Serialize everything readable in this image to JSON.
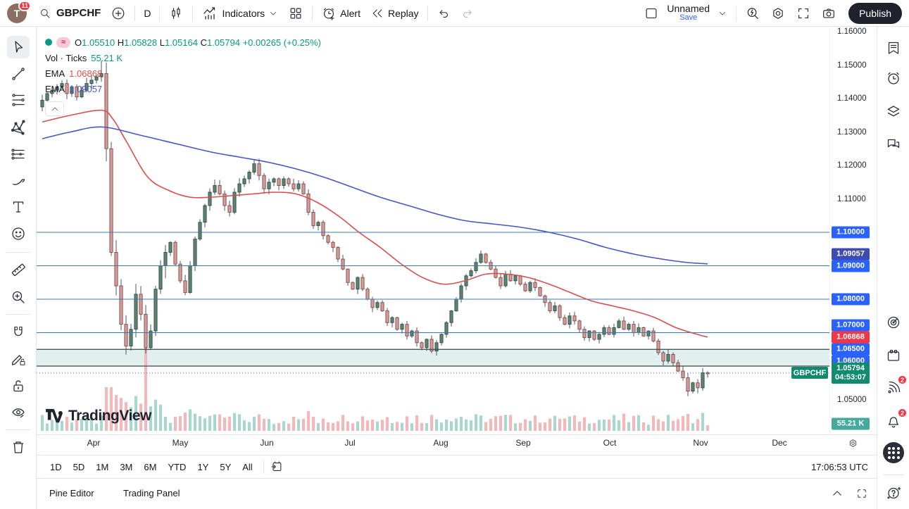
{
  "header": {
    "avatar_initial": "T",
    "avatar_badge": "11",
    "symbol": "GBPCHF",
    "interval": "D",
    "indicators_label": "Indicators",
    "alert_label": "Alert",
    "replay_label": "Replay",
    "layout_name": "Unnamed",
    "save_label": "Save",
    "publish_label": "Publish"
  },
  "legend": {
    "approx_symbol": "≈",
    "ohlc_items": [
      {
        "k": "O",
        "v": "1.05510"
      },
      {
        "k": "H",
        "v": "1.05828"
      },
      {
        "k": "L",
        "v": "1.05164"
      },
      {
        "k": "C",
        "v": "1.05794"
      }
    ],
    "change_text": "+0.00265 (+0.25%)",
    "vol_label": "Vol · Ticks",
    "vol_value": "55.21 K",
    "ema_label": "EMA",
    "ema_fast_value": "1.06868",
    "ema_slow_value": "1.09057"
  },
  "price_scale": {
    "ticks": [
      {
        "label": "1.16000",
        "price": 1.16
      },
      {
        "label": "1.15000",
        "price": 1.15
      },
      {
        "label": "1.14000",
        "price": 1.14
      },
      {
        "label": "1.13000",
        "price": 1.13
      },
      {
        "label": "1.12000",
        "price": 1.12
      },
      {
        "label": "1.11000",
        "price": 1.11
      },
      {
        "label": "1.05000",
        "price": 1.05
      }
    ],
    "badges": [
      {
        "label": "1.10000",
        "color": "#2962ff"
      },
      {
        "label": "1.09057",
        "color": "#3f4bb5"
      },
      {
        "label": "1.09000",
        "color": "#2962ff"
      },
      {
        "label": "1.08000",
        "color": "#2962ff"
      },
      {
        "label": "1.07000",
        "color": "#2962ff"
      },
      {
        "label": "1.06868",
        "color": "#f23645"
      },
      {
        "label": "1.06500",
        "color": "#2962ff"
      },
      {
        "label": "1.06000",
        "color": "#2962ff"
      },
      {
        "label": "1.05794",
        "sub": "04:53:07",
        "color": "#118a6e"
      },
      {
        "label": "55.21 K",
        "color": "#45a99e"
      }
    ],
    "symbol_axis_label": "GBPCHF"
  },
  "time_scale": {
    "months": [
      "Apr",
      "May",
      "Jun",
      "Jul",
      "Aug",
      "Sep",
      "Oct",
      "Nov",
      "Dec"
    ],
    "clock": "17:06:53 UTC"
  },
  "ranges": [
    "1D",
    "5D",
    "1M",
    "3M",
    "6M",
    "YTD",
    "1Y",
    "5Y",
    "All"
  ],
  "footer": {
    "tabs": [
      "Pine Editor",
      "Trading Panel"
    ]
  },
  "watermark_text": "TradingView",
  "right_sidebar": {
    "streams_badge": "2",
    "notifications_badge": "2"
  },
  "chart_data": {
    "type": "candlestick",
    "symbol": "GBPCHF",
    "interval": "1D",
    "last_bar": {
      "o": 1.0551,
      "h": 1.05828,
      "l": 1.05164,
      "c": 1.05794,
      "change": 0.00265,
      "change_pct": 0.25
    },
    "volume_last": "55.21 K",
    "ylim": [
      1.0475,
      1.161
    ],
    "price_levels_blue": [
      1.1,
      1.09,
      1.08,
      1.07
    ],
    "band": {
      "top": 1.065,
      "bottom": 1.06
    },
    "last_price": 1.05794,
    "countdown": "04:53:07",
    "ema_fast": {
      "color": "#d94f4f",
      "last": 1.06868,
      "points": [
        [
          60,
          1.133
        ],
        [
          100,
          1.135
        ],
        [
          144,
          1.1365
        ],
        [
          160,
          1.134
        ],
        [
          180,
          1.127
        ],
        [
          210,
          1.1165
        ],
        [
          240,
          1.1125
        ],
        [
          270,
          1.1105
        ],
        [
          300,
          1.1105
        ],
        [
          330,
          1.111
        ],
        [
          360,
          1.1115
        ],
        [
          390,
          1.112
        ],
        [
          420,
          1.1115
        ],
        [
          450,
          1.109
        ],
        [
          480,
          1.105
        ],
        [
          510,
          1.1
        ],
        [
          540,
          1.0955
        ],
        [
          570,
          1.0905
        ],
        [
          600,
          1.0865
        ],
        [
          630,
          1.0845
        ],
        [
          660,
          1.0855
        ],
        [
          690,
          1.0875
        ],
        [
          720,
          1.0875
        ],
        [
          750,
          1.0865
        ],
        [
          780,
          1.0845
        ],
        [
          810,
          1.082
        ],
        [
          840,
          1.0795
        ],
        [
          870,
          1.078
        ],
        [
          900,
          1.0765
        ],
        [
          930,
          1.0745
        ],
        [
          960,
          1.0715
        ],
        [
          990,
          1.0695
        ],
        [
          1005,
          1.06868
        ]
      ]
    },
    "ema_slow": {
      "color": "#4656c9",
      "last": 1.09057,
      "points": [
        [
          60,
          1.128
        ],
        [
          100,
          1.13
        ],
        [
          145,
          1.1315
        ],
        [
          200,
          1.129
        ],
        [
          250,
          1.1265
        ],
        [
          300,
          1.124
        ],
        [
          340,
          1.1225
        ],
        [
          380,
          1.121
        ],
        [
          420,
          1.119
        ],
        [
          460,
          1.1165
        ],
        [
          500,
          1.1135
        ],
        [
          540,
          1.1105
        ],
        [
          580,
          1.108
        ],
        [
          620,
          1.1055
        ],
        [
          660,
          1.1035
        ],
        [
          700,
          1.1025
        ],
        [
          740,
          1.1015
        ],
        [
          780,
          1.1
        ],
        [
          820,
          1.098
        ],
        [
          860,
          1.0955
        ],
        [
          900,
          1.0935
        ],
        [
          940,
          1.092
        ],
        [
          975,
          1.091
        ],
        [
          1005,
          1.09057
        ]
      ]
    },
    "candles": {
      "x_start": 60,
      "x_step": 7,
      "closes": [
        1.1395,
        1.1415,
        1.1425,
        1.1435,
        1.1445,
        1.1415,
        1.1435,
        1.1405,
        1.1425,
        1.1445,
        1.1455,
        1.1465,
        1.1475,
        1.125,
        1.094,
        1.084,
        1.0725,
        1.066,
        1.071,
        1.0815,
        1.0755,
        1.0655,
        1.0705,
        1.083,
        1.09,
        1.094,
        1.097,
        1.0905,
        1.0855,
        1.082,
        1.09,
        1.098,
        1.103,
        1.108,
        1.112,
        1.114,
        1.1115,
        1.108,
        1.106,
        1.112,
        1.1145,
        1.116,
        1.118,
        1.1205,
        1.117,
        1.113,
        1.115,
        1.116,
        1.114,
        1.116,
        1.1145,
        1.113,
        1.1145,
        1.1115,
        1.106,
        1.102,
        1.103,
        1.099,
        1.097,
        1.0955,
        1.092,
        1.089,
        1.085,
        1.083,
        1.0865,
        1.083,
        1.08,
        1.0775,
        1.079,
        1.0765,
        1.073,
        1.0745,
        1.071,
        1.0725,
        1.069,
        1.0705,
        1.067,
        1.0655,
        1.068,
        1.0645,
        1.067,
        1.0695,
        1.073,
        1.0765,
        1.08,
        1.084,
        1.087,
        1.0885,
        1.091,
        1.0935,
        1.091,
        1.089,
        1.0865,
        1.084,
        1.0875,
        1.0855,
        1.087,
        1.0845,
        1.0825,
        1.085,
        1.0835,
        1.081,
        1.079,
        1.0765,
        1.078,
        1.0745,
        1.0725,
        1.075,
        1.0735,
        1.071,
        1.0685,
        1.0705,
        1.068,
        1.0695,
        1.0715,
        1.0695,
        1.0715,
        1.0735,
        1.071,
        1.0725,
        1.07,
        1.0715,
        1.069,
        1.0705,
        1.0675,
        1.064,
        1.0615,
        1.0635,
        1.061,
        1.0585,
        1.0565,
        1.0525,
        1.055,
        1.0535,
        1.058,
        1.05794
      ]
    },
    "volume_spike_index": 21,
    "colors": {
      "up_body": "#5f8273",
      "up_border": "#2f4f43",
      "down_body": "#cf9f9d",
      "down_border": "#8d4540",
      "wick": "#4a5a62",
      "vol_up": "#a9d7cf",
      "vol_down": "#f4b8bb",
      "level_blue": "#3978b8",
      "band_edge": "#37474f",
      "band_fill": "rgba(86,174,165,0.18)",
      "last_line": "#3b82c4"
    }
  }
}
